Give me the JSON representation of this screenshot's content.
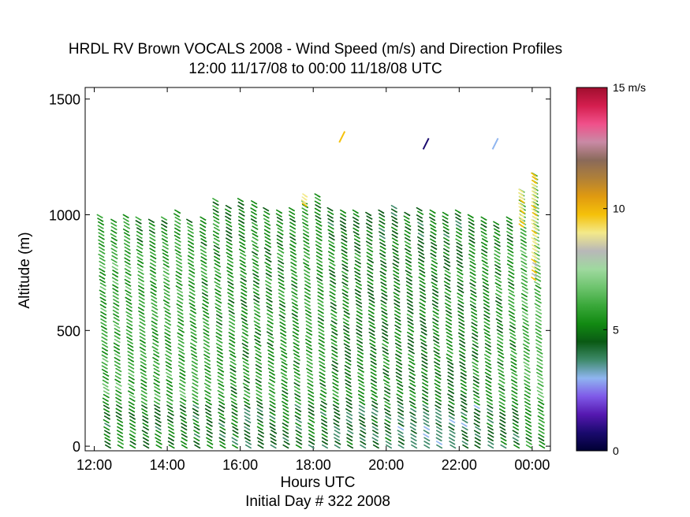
{
  "chart_data": {
    "type": "wind-barb-profile",
    "title": "HRDL RV Brown VOCALS 2008 - Wind Speed (m/s) and Direction Profiles",
    "subtitle": "12:00 11/17/08 to 00:00 11/18/08  UTC",
    "xlabel": "Hours UTC",
    "xlabel_note": "Initial Day # 322  2008",
    "ylabel": "Altitude (m)",
    "x_ticks": [
      "12:00",
      "14:00",
      "16:00",
      "18:00",
      "20:00",
      "22:00",
      "00:00"
    ],
    "x_tick_hours": [
      12,
      14,
      16,
      18,
      20,
      22,
      24
    ],
    "xlim": [
      11.75,
      24.5
    ],
    "y_ticks": [
      "0",
      "500",
      "1000",
      "1500"
    ],
    "y_tick_values": [
      0,
      500,
      1000,
      1500
    ],
    "ylim": [
      -20,
      1550
    ],
    "colorbar": {
      "range": [
        0,
        15
      ],
      "unit": "m/s",
      "tick_labels": [
        "0",
        "5",
        "10",
        "15 m/s"
      ],
      "tick_values": [
        0,
        5,
        10,
        15
      ],
      "colors": [
        "#000033",
        "#1a0a6e",
        "#5518b0",
        "#7f5ae8",
        "#8fb5f0",
        "#3e8a6a",
        "#0a5a14",
        "#128a12",
        "#3aa83a",
        "#6ec46e",
        "#9fd99f",
        "#b8b8b8",
        "#f3e98a",
        "#f5c10a",
        "#e09a10",
        "#b08038",
        "#8a6a5a",
        "#c98aa5",
        "#f0508a",
        "#d41e4e",
        "#a00e2e"
      ]
    },
    "profiles": [
      {
        "time_hours": 12.1,
        "top_m": 1000,
        "speed_ms": 5.9
      },
      {
        "time_hours": 12.45,
        "top_m": 980,
        "speed_ms": 6.0
      },
      {
        "time_hours": 12.8,
        "top_m": 1000,
        "speed_ms": 6.0
      },
      {
        "time_hours": 13.15,
        "top_m": 990,
        "speed_ms": 5.9
      },
      {
        "time_hours": 13.5,
        "top_m": 980,
        "speed_ms": 5.8
      },
      {
        "time_hours": 13.85,
        "top_m": 990,
        "speed_ms": 5.8
      },
      {
        "time_hours": 14.2,
        "top_m": 1020,
        "speed_ms": 5.9
      },
      {
        "time_hours": 14.55,
        "top_m": 980,
        "speed_ms": 5.7
      },
      {
        "time_hours": 14.9,
        "top_m": 990,
        "speed_ms": 5.6
      },
      {
        "time_hours": 15.25,
        "top_m": 1070,
        "speed_ms": 5.6
      },
      {
        "time_hours": 15.6,
        "top_m": 1040,
        "speed_ms": 5.5
      },
      {
        "time_hours": 15.95,
        "top_m": 1070,
        "speed_ms": 5.3
      },
      {
        "time_hours": 16.3,
        "top_m": 1060,
        "speed_ms": 5.4
      },
      {
        "time_hours": 16.65,
        "top_m": 1030,
        "speed_ms": 5.4
      },
      {
        "time_hours": 17.0,
        "top_m": 1020,
        "speed_ms": 5.5
      },
      {
        "time_hours": 17.35,
        "top_m": 1030,
        "speed_ms": 5.6
      },
      {
        "time_hours": 17.7,
        "top_m": 1060,
        "speed_ms": 5.7
      },
      {
        "time_hours": 18.05,
        "top_m": 1090,
        "speed_ms": 5.6
      },
      {
        "time_hours": 18.4,
        "top_m": 1030,
        "speed_ms": 5.2
      },
      {
        "time_hours": 18.75,
        "top_m": 1020,
        "speed_ms": 5.1
      },
      {
        "time_hours": 19.1,
        "top_m": 1020,
        "speed_ms": 5.2
      },
      {
        "time_hours": 19.45,
        "top_m": 1010,
        "speed_ms": 5.1
      },
      {
        "time_hours": 19.8,
        "top_m": 1020,
        "speed_ms": 5.2
      },
      {
        "time_hours": 20.15,
        "top_m": 1040,
        "speed_ms": 5.0
      },
      {
        "time_hours": 20.5,
        "top_m": 1010,
        "speed_ms": 5.1
      },
      {
        "time_hours": 20.85,
        "top_m": 1030,
        "speed_ms": 5.0
      },
      {
        "time_hours": 21.2,
        "top_m": 1020,
        "speed_ms": 5.1
      },
      {
        "time_hours": 21.55,
        "top_m": 1010,
        "speed_ms": 5.2
      },
      {
        "time_hours": 21.9,
        "top_m": 1020,
        "speed_ms": 5.2
      },
      {
        "time_hours": 22.25,
        "top_m": 1000,
        "speed_ms": 5.3
      },
      {
        "time_hours": 22.6,
        "top_m": 990,
        "speed_ms": 5.4
      },
      {
        "time_hours": 22.95,
        "top_m": 970,
        "speed_ms": 5.6
      },
      {
        "time_hours": 23.3,
        "top_m": 990,
        "speed_ms": 5.6
      },
      {
        "time_hours": 23.65,
        "top_m": 1110,
        "speed_ms": 6.2
      },
      {
        "time_hours": 24.0,
        "top_m": 1180,
        "speed_ms": 6.4
      }
    ],
    "high_segments": [
      {
        "time_hours": 23.65,
        "from_m": 960,
        "to_m": 1110,
        "speed_ms": 9.3
      },
      {
        "time_hours": 24.0,
        "from_m": 730,
        "to_m": 1180,
        "speed_ms": 9.0
      },
      {
        "time_hours": 17.7,
        "from_m": 1050,
        "to_m": 1090,
        "speed_ms": 9.0
      }
    ],
    "isolated_barbs": [
      {
        "time_hours": 18.8,
        "altitude_m": 1340,
        "speed_ms": 9.8
      },
      {
        "time_hours": 21.1,
        "altitude_m": 1310,
        "speed_ms": 0.8
      },
      {
        "time_hours": 23.0,
        "altitude_m": 1310,
        "speed_ms": 3.5
      }
    ]
  }
}
